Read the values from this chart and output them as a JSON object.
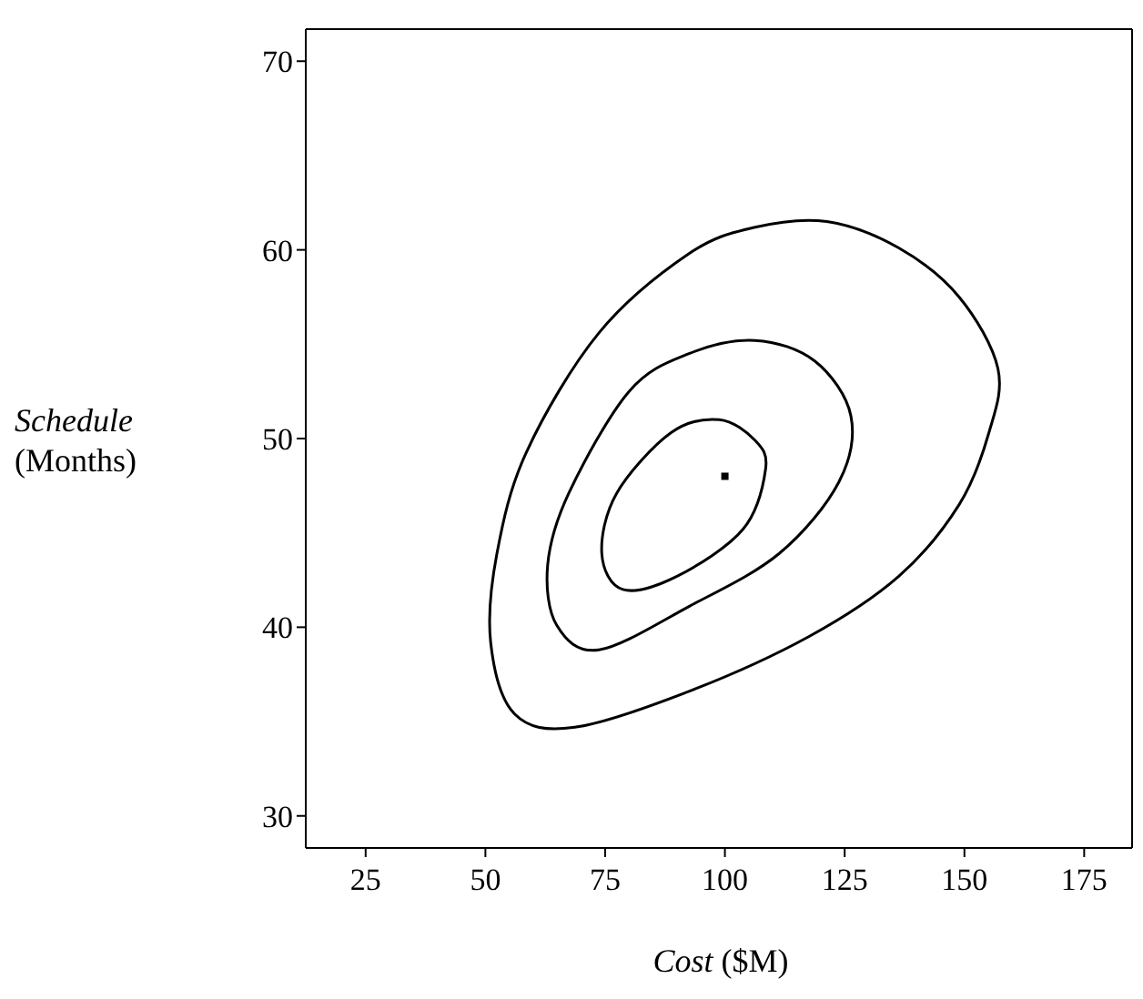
{
  "chart_data": {
    "type": "scatter",
    "xlabel": "Cost ($M)",
    "ylabel": "Schedule (Months)",
    "xlim": [
      12.5,
      185
    ],
    "xticks": [
      25,
      50,
      75,
      100,
      125,
      150,
      175
    ],
    "ylim": [
      28.3,
      71.7
    ],
    "yticks": [
      30,
      40,
      50,
      60,
      70
    ],
    "marker": "square",
    "color": "#000000",
    "x": [
      100
    ],
    "values": [
      48
    ]
  }
}
